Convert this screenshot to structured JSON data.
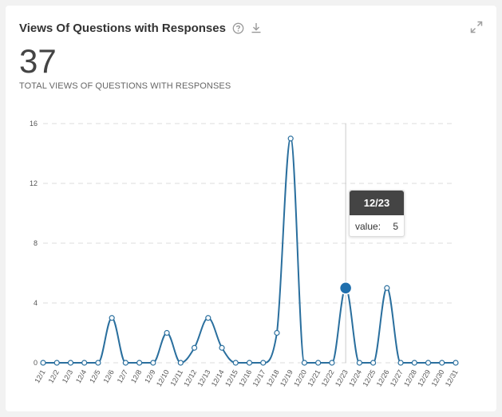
{
  "widget": {
    "title": "Views Of Questions with Responses",
    "metric_value": "37",
    "metric_label": "TOTAL VIEWS OF QUESTIONS WITH RESPONSES",
    "icons": {
      "help": "help-circle-icon",
      "download": "download-icon",
      "expand": "expand-icon"
    }
  },
  "tooltip": {
    "title": "12/23",
    "label": "value:",
    "value": "5"
  },
  "chart_data": {
    "type": "line",
    "categories": [
      "12/1",
      "12/2",
      "12/3",
      "12/4",
      "12/5",
      "12/6",
      "12/7",
      "12/8",
      "12/9",
      "12/10",
      "12/11",
      "12/12",
      "12/13",
      "12/14",
      "12/15",
      "12/16",
      "12/17",
      "12/18",
      "12/19",
      "12/20",
      "12/21",
      "12/22",
      "12/23",
      "12/24",
      "12/25",
      "12/26",
      "12/27",
      "12/28",
      "12/29",
      "12/30",
      "12/31"
    ],
    "values": [
      0,
      0,
      0,
      0,
      0,
      3,
      0,
      0,
      0,
      2,
      0,
      1,
      3,
      1,
      0,
      0,
      0,
      2,
      15,
      0,
      0,
      0,
      5,
      0,
      0,
      5,
      0,
      0,
      0,
      0,
      0
    ],
    "yticks": [
      0,
      4,
      8,
      12,
      16
    ],
    "ylim": [
      0,
      16
    ],
    "highlighted_index": 22,
    "grid": true,
    "colors": {
      "line": "#2a6f9e",
      "point_fill": "#ffffff",
      "highlight": "#1f6fad",
      "grid": "#e3e3e3",
      "crosshair": "#cccccc"
    }
  }
}
